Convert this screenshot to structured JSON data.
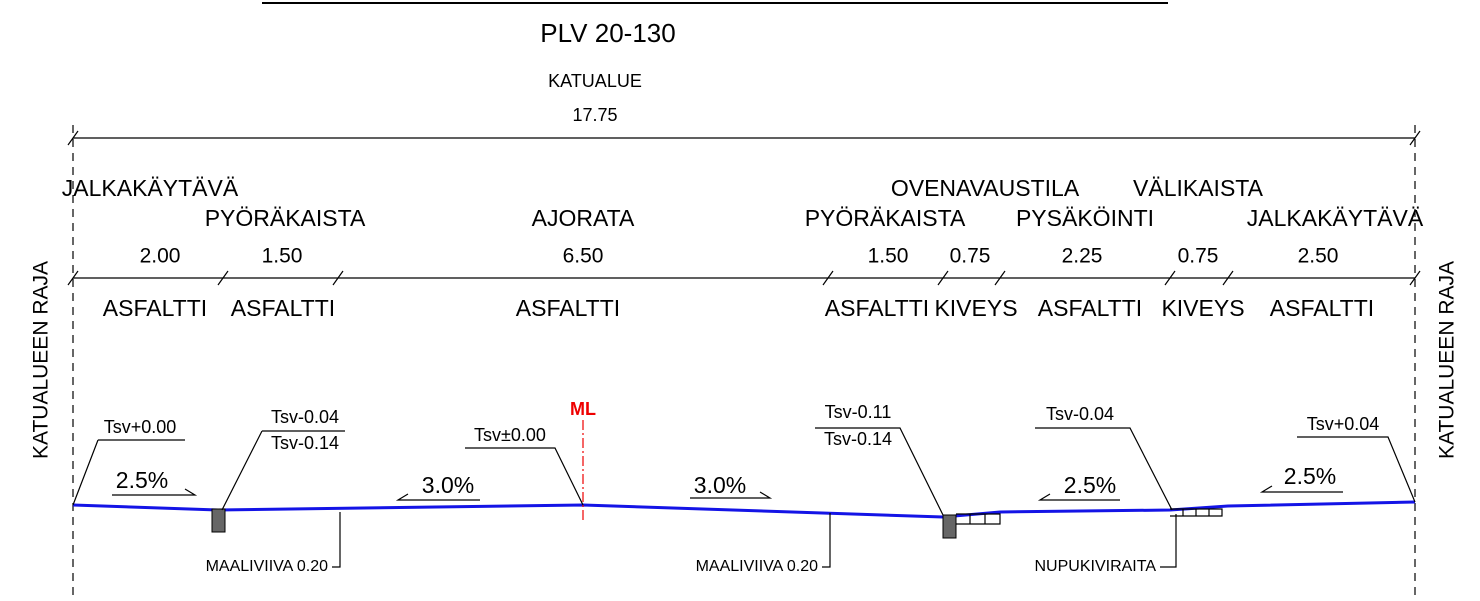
{
  "title": "PLV 20-130",
  "area": {
    "label": "KATUALUE",
    "width": "17.75"
  },
  "boundary_left": "KATUALUEEN RAJA",
  "boundary_right": "KATUALUEEN RAJA",
  "zones": [
    {
      "name": "JALKAKÄYTÄVÄ",
      "width": "2.00",
      "surface": "ASFALTTI"
    },
    {
      "name": "PYÖRÄKAISTA",
      "width": "1.50",
      "surface": "ASFALTTI"
    },
    {
      "name": "AJORATA",
      "width": "6.50",
      "surface": "ASFALTTI"
    },
    {
      "name": "PYÖRÄKAISTA",
      "width": "1.50",
      "surface": "ASFALTTI"
    },
    {
      "name": "OVENAVAUSTILA",
      "width": "0.75",
      "surface": "KIVEYS"
    },
    {
      "name": "PYSÄKÖINTI",
      "width": "2.25",
      "surface": "ASFALTTI"
    },
    {
      "name": "VÄLIKAISTA",
      "width": "0.75",
      "surface": "KIVEYS"
    },
    {
      "name": "JALKAKÄYTÄVÄ",
      "width": "2.50",
      "surface": "ASFALTTI"
    }
  ],
  "centerline": "ML",
  "elevations": [
    "Tsv+0.00",
    "Tsv-0.04",
    "Tsv-0.14",
    "Tsv±0.00",
    "Tsv-0.11",
    "Tsv-0.14",
    "Tsv-0.04",
    "Tsv+0.04"
  ],
  "slopes": [
    "2.5%",
    "3.0%",
    "3.0%",
    "2.5%",
    "2.5%"
  ],
  "notes": [
    "MAALIVIIVA 0.20",
    "MAALIVIIVA 0.20",
    "NUPUKIVIRAITA"
  ]
}
